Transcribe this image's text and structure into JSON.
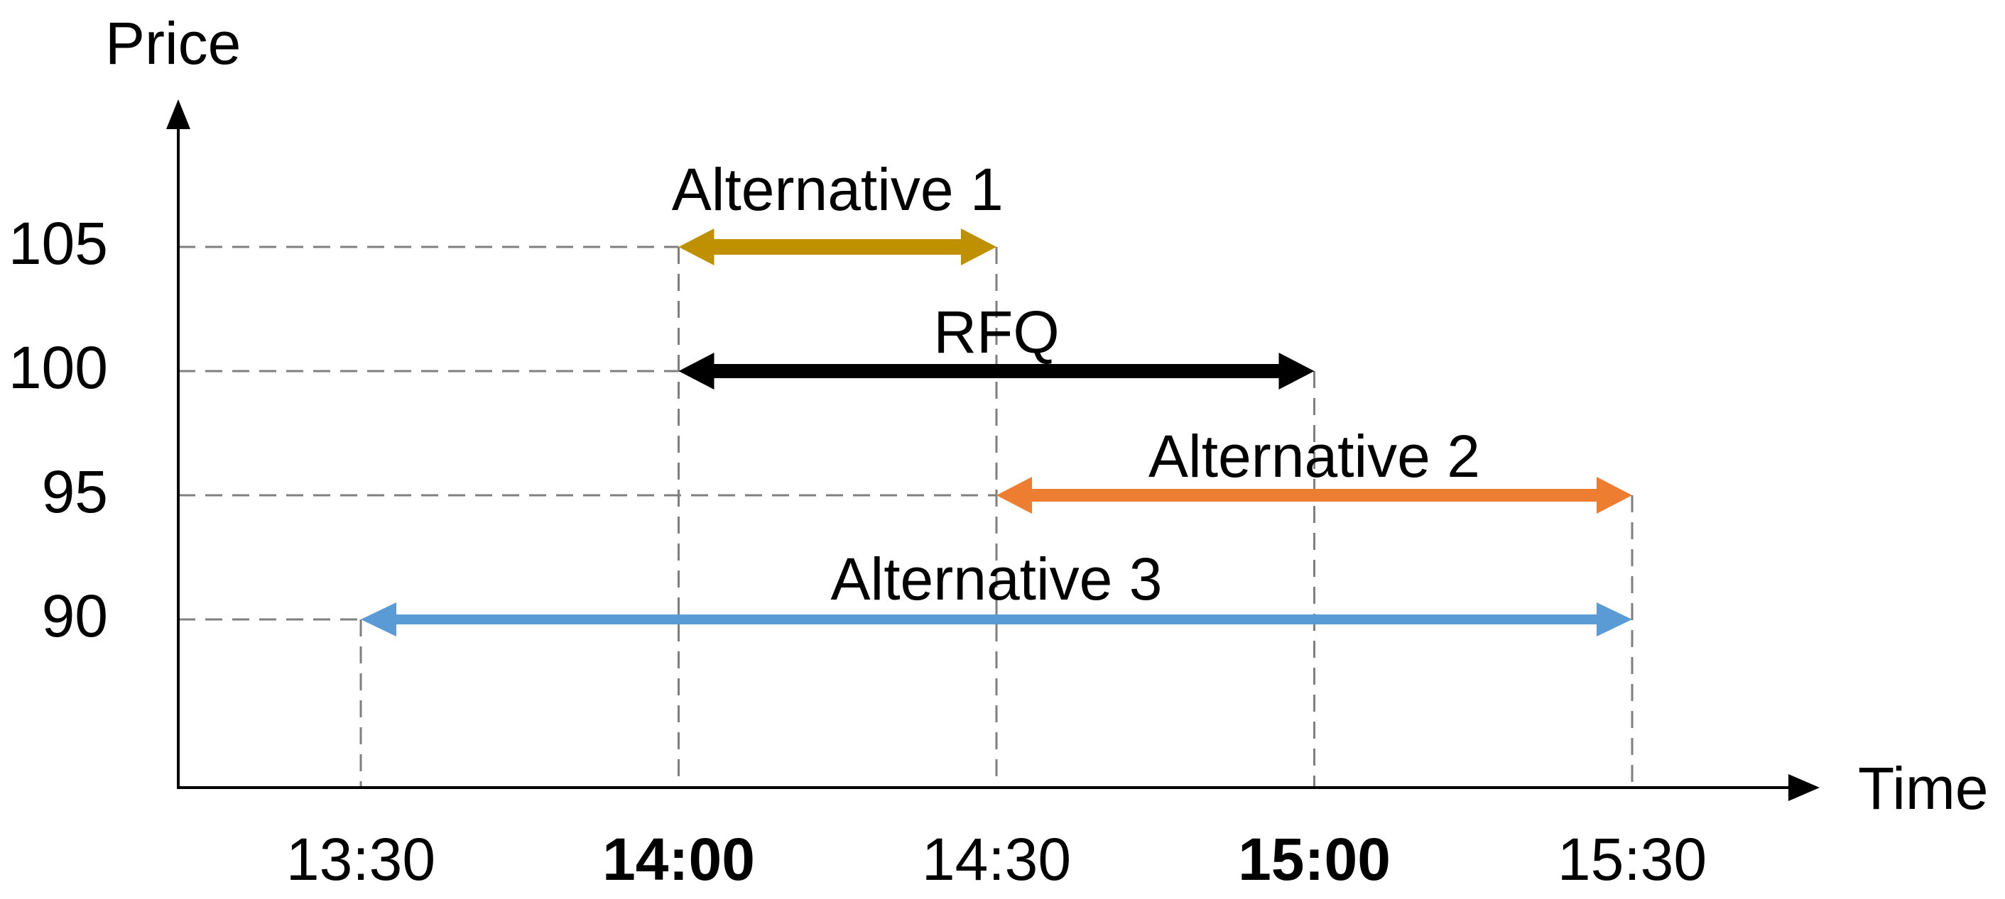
{
  "chart_data": {
    "type": "interval-arrows",
    "title": "",
    "xlabel": "Time",
    "ylabel": "Price",
    "x_ticks": [
      {
        "label": "13:30",
        "bold": false
      },
      {
        "label": "14:00",
        "bold": true
      },
      {
        "label": "14:30",
        "bold": false
      },
      {
        "label": "15:00",
        "bold": true
      },
      {
        "label": "15:30",
        "bold": false
      }
    ],
    "y_ticks": [
      105,
      100,
      95,
      90
    ],
    "x_range": [
      "13:30",
      "15:30"
    ],
    "y_range": [
      90,
      105
    ],
    "grid": "dashed-guides-from-axes-to-interval-endpoints",
    "legend_position": "none",
    "series": [
      {
        "name": "Alternative 1",
        "price": 105,
        "start": "14:00",
        "end": "14:30",
        "color": "#BF9000"
      },
      {
        "name": "RFQ",
        "price": 100,
        "start": "14:00",
        "end": "15:00",
        "color": "#000000"
      },
      {
        "name": "Alternative 2",
        "price": 95,
        "start": "14:30",
        "end": "15:30",
        "color": "#ED7D31"
      },
      {
        "name": "Alternative 3",
        "price": 90,
        "start": "13:30",
        "end": "15:30",
        "color": "#5B9BD5"
      }
    ],
    "colors": {
      "guide": "#7F7F7F",
      "axis": "#000000",
      "text": "#000000",
      "background": "#FFFFFF"
    }
  }
}
